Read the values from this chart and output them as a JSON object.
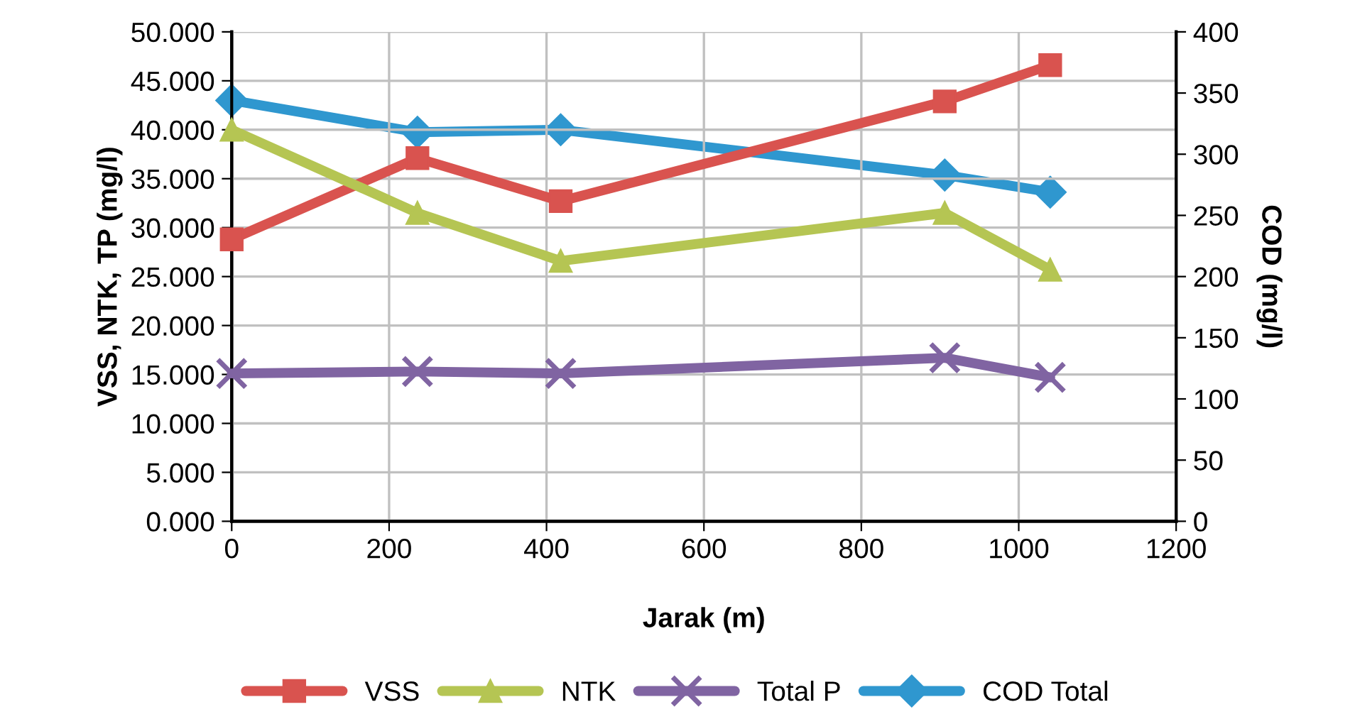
{
  "chart_data": {
    "type": "line",
    "xlabel": "Jarak (m)",
    "ylabel": "VSS, NTK, TP (mg/l)",
    "y2label": "COD (mg/l)",
    "x": [
      0,
      236,
      418,
      906,
      1040
    ],
    "series": [
      {
        "name": "VSS",
        "color": "#d9534f",
        "marker": "square",
        "values": [
          28.8,
          37.1,
          32.7,
          42.9,
          46.6
        ]
      },
      {
        "name": "NTK",
        "color": "#b5c553",
        "marker": "triangle",
        "values": [
          40.0,
          31.5,
          26.6,
          31.5,
          25.7
        ]
      },
      {
        "name": "Total P",
        "color": "#8064a2",
        "marker": "cross",
        "values": [
          15.1,
          15.3,
          15.1,
          16.7,
          14.7
        ]
      },
      {
        "name": "COD Total",
        "color": "#2f97cf",
        "marker": "diamond",
        "axis": "y2",
        "values": [
          344,
          318,
          320,
          283,
          269
        ]
      }
    ],
    "xlim": [
      0,
      1200
    ],
    "xticks": [
      0,
      200,
      400,
      600,
      800,
      1000,
      1200
    ],
    "ylim": [
      0,
      50
    ],
    "yticks": [
      {
        "value": 0,
        "label": "0.000"
      },
      {
        "value": 5,
        "label": "5.000"
      },
      {
        "value": 10,
        "label": "10.000"
      },
      {
        "value": 15,
        "label": "15.000"
      },
      {
        "value": 20,
        "label": "20.000"
      },
      {
        "value": 25,
        "label": "25.000"
      },
      {
        "value": 30,
        "label": "30.000"
      },
      {
        "value": 35,
        "label": "35.000"
      },
      {
        "value": 40,
        "label": "40.000"
      },
      {
        "value": 45,
        "label": "45.000"
      },
      {
        "value": 50,
        "label": "50.000"
      }
    ],
    "y2lim": [
      0,
      400
    ],
    "y2ticks": [
      0,
      50,
      100,
      150,
      200,
      250,
      300,
      350,
      400
    ],
    "grid": true,
    "legend": "bottom",
    "line_style": "solid"
  }
}
